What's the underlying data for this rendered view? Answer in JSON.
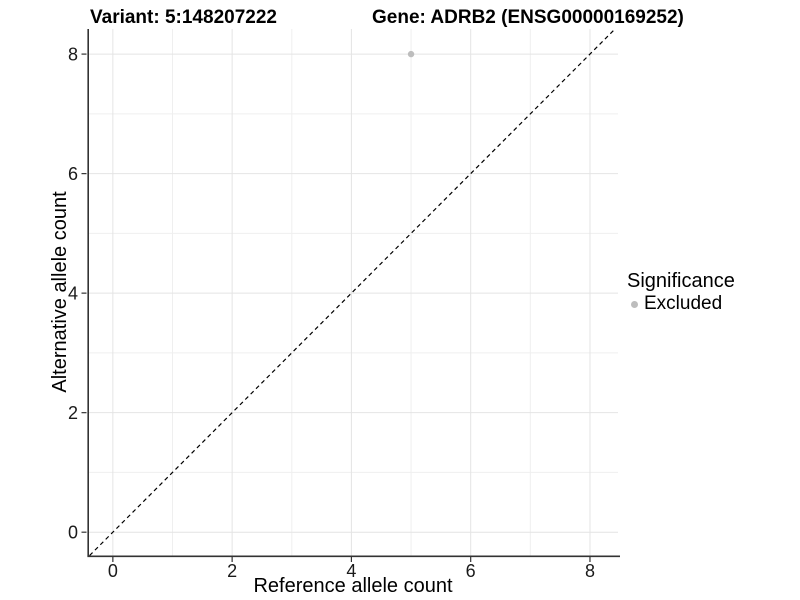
{
  "titles": {
    "variant": "Variant: 5:148207222",
    "gene": "Gene: ADRB2 (ENSG00000169252)"
  },
  "chart_data": {
    "type": "scatter",
    "title_left": "Variant: 5:148207222",
    "title_right": "Gene: ADRB2 (ENSG00000169252)",
    "xlabel": "Reference allele count",
    "ylabel": "Alternative allele count",
    "xlim": [
      -0.4,
      8.47
    ],
    "ylim": [
      -0.39,
      8.42
    ],
    "xticks": [
      0,
      2,
      4,
      6,
      8
    ],
    "yticks": [
      0,
      2,
      4,
      6,
      8
    ],
    "minor_xticks": [
      1,
      3,
      5,
      7
    ],
    "minor_yticks": [
      1,
      3,
      5,
      7
    ],
    "grid": true,
    "points": [
      {
        "x": 5,
        "y": 8,
        "group": "Excluded"
      }
    ],
    "reference_line": {
      "kind": "identity",
      "slope": 1,
      "intercept": 0,
      "style": "dashed"
    },
    "legend": {
      "title": "Significance",
      "position": "right",
      "entries": [
        {
          "label": "Excluded",
          "color": "#bdbdbd"
        }
      ]
    },
    "colors": {
      "point": "#bdbdbd",
      "major_grid": "#e4e4e4",
      "minor_grid": "#efefef",
      "axis": "#333333",
      "tick_text": "#1a1a1a",
      "reference_line": "#000000"
    }
  }
}
